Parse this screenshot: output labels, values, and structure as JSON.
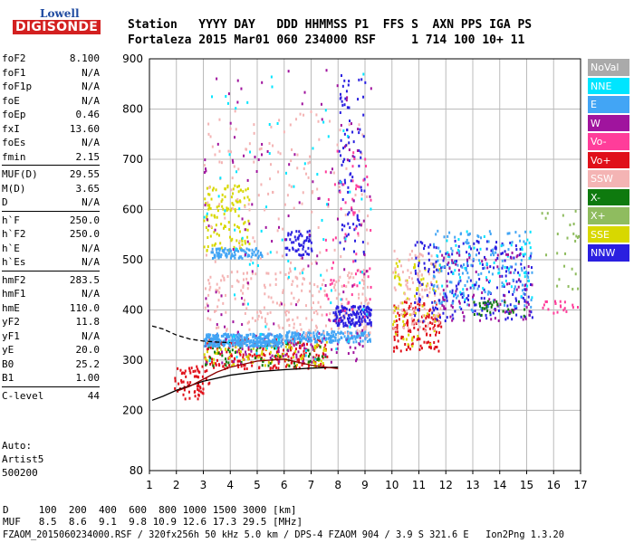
{
  "logo": {
    "line1": "Lowell",
    "line2": "DIGISONDE"
  },
  "header": {
    "labels": "Station   YYYY DAY   DDD HHMMSS P1  FFS S  AXN PPS IGA PS",
    "values": "Fortaleza 2015 Mar01 060 234000 RSF     1 714 100 10+ 11"
  },
  "params": {
    "group1": [
      {
        "name": "foF2",
        "value": "8.100"
      },
      {
        "name": "foF1",
        "value": "N/A"
      },
      {
        "name": "foF1p",
        "value": "N/A"
      },
      {
        "name": "foE",
        "value": "N/A"
      },
      {
        "name": "foEp",
        "value": "0.46"
      },
      {
        "name": "fxI",
        "value": "13.60"
      },
      {
        "name": "foEs",
        "value": "N/A"
      },
      {
        "name": "fmin",
        "value": "2.15"
      }
    ],
    "group2": [
      {
        "name": "MUF(D)",
        "value": "29.55"
      },
      {
        "name": "M(D)",
        "value": "3.65"
      },
      {
        "name": "D",
        "value": "N/A"
      }
    ],
    "group3": [
      {
        "name": "h`F",
        "value": "250.0"
      },
      {
        "name": "h`F2",
        "value": "250.0"
      },
      {
        "name": "h`E",
        "value": "N/A"
      },
      {
        "name": "h`Es",
        "value": "N/A"
      }
    ],
    "group4": [
      {
        "name": "hmF2",
        "value": "283.5"
      },
      {
        "name": "hmF1",
        "value": "N/A"
      },
      {
        "name": "hmE",
        "value": "110.0"
      },
      {
        "name": "yF2",
        "value": "11.8"
      },
      {
        "name": "yF1",
        "value": "N/A"
      },
      {
        "name": "yE",
        "value": "20.0"
      },
      {
        "name": "B0",
        "value": "25.2"
      },
      {
        "name": "B1",
        "value": "1.00"
      }
    ],
    "group5": [
      {
        "name": "C-level",
        "value": "44"
      }
    ]
  },
  "autoscale": [
    "Auto:",
    "Artist5",
    "500200"
  ],
  "legend": [
    {
      "label": "NoVal",
      "color": "#aaaaaa"
    },
    {
      "label": "NNE",
      "color": "#00e5ff"
    },
    {
      "label": "E",
      "color": "#42a5f5"
    },
    {
      "label": "W",
      "color": "#a0149e"
    },
    {
      "label": "Vo-",
      "color": "#ff3d9a"
    },
    {
      "label": "Vo+",
      "color": "#e0101a"
    },
    {
      "label": "SSW",
      "color": "#f4b4b4"
    },
    {
      "label": "X-",
      "color": "#0e7a0e"
    },
    {
      "label": "X+",
      "color": "#8fbc5f"
    },
    {
      "label": "SSE",
      "color": "#d8d800"
    },
    {
      "label": "NNW",
      "color": "#2a1fe0"
    }
  ],
  "bottom": {
    "d_line": "D     100  200  400  600  800 1000 1500 3000 [km]",
    "muf_line": "MUF   8.5  8.6  9.1  9.8 10.9 12.6 17.3 29.5 [MHz]",
    "file_line": "FZAOM_2015060234000.RSF / 320fx256h 50 kHz 5.0 km / DPS-4 FZAOM 904 / 3.9 S 321.6 E   Ion2Png 1.3.20"
  },
  "chart_data": {
    "type": "scatter",
    "title": "",
    "xlabel": "",
    "ylabel": "",
    "xlim": [
      1,
      17
    ],
    "ylim": [
      80,
      900
    ],
    "x_ticks": [
      1,
      2,
      3,
      4,
      5,
      6,
      7,
      8,
      9,
      10,
      11,
      12,
      13,
      14,
      15,
      16,
      17
    ],
    "y_ticks": [
      80,
      200,
      300,
      400,
      500,
      600,
      700,
      800,
      900
    ],
    "grid": true,
    "clusters": [
      {
        "name": "F trace O-mode",
        "color": "#e0101a",
        "x": [
          1.9,
          3.2
        ],
        "y": [
          225,
          290
        ],
        "n": 70
      },
      {
        "name": "F trace band",
        "color": "#e0101a",
        "x": [
          3.0,
          7.6
        ],
        "y": [
          285,
          345
        ],
        "n": 220
      },
      {
        "name": "F trace band",
        "color": "#d8d800",
        "x": [
          3.0,
          7.6
        ],
        "y": [
          290,
          340
        ],
        "n": 90
      },
      {
        "name": "F trace band",
        "color": "#0e7a0e",
        "x": [
          3.0,
          7.6
        ],
        "y": [
          290,
          340
        ],
        "n": 60
      },
      {
        "name": "F trace band",
        "color": "#a0149e",
        "x": [
          3.0,
          9.0
        ],
        "y": [
          295,
          360
        ],
        "n": 70
      },
      {
        "name": "F2 echo band",
        "color": "#42a5f5",
        "x": [
          3.0,
          5.9
        ],
        "y": [
          330,
          355
        ],
        "n": 320
      },
      {
        "name": "F2 echo band",
        "color": "#42a5f5",
        "x": [
          6.0,
          9.2
        ],
        "y": [
          338,
          360
        ],
        "n": 200
      },
      {
        "name": "echo column",
        "color": "#d8d800",
        "x": [
          3.0,
          4.7
        ],
        "y": [
          520,
          650
        ],
        "n": 120
      },
      {
        "name": "echo column",
        "color": "#f4b4b4",
        "x": [
          3.0,
          9.2
        ],
        "y": [
          350,
          480
        ],
        "n": 240
      },
      {
        "name": "echo column",
        "color": "#f4b4b4",
        "x": [
          3.0,
          9.2
        ],
        "y": [
          480,
          800
        ],
        "n": 140
      },
      {
        "name": "echo column",
        "color": "#42a5f5",
        "x": [
          3.2,
          5.2
        ],
        "y": [
          505,
          525
        ],
        "n": 90
      },
      {
        "name": "echo column",
        "color": "#2a1fe0",
        "x": [
          7.8,
          9.2
        ],
        "y": [
          370,
          410
        ],
        "n": 150
      },
      {
        "name": "echo column",
        "color": "#2a1fe0",
        "x": [
          6.0,
          7.0
        ],
        "y": [
          510,
          560
        ],
        "n": 60
      },
      {
        "name": "echo column",
        "color": "#2a1fe0",
        "x": [
          8.0,
          9.0
        ],
        "y": [
          500,
          880
        ],
        "n": 90
      },
      {
        "name": "echo column",
        "color": "#ff3d9a",
        "x": [
          7.5,
          9.2
        ],
        "y": [
          380,
          720
        ],
        "n": 70
      },
      {
        "name": "scatter",
        "color": "#a0149e",
        "x": [
          3.0,
          9.2
        ],
        "y": [
          300,
          880
        ],
        "n": 120
      },
      {
        "name": "scatter",
        "color": "#00e5ff",
        "x": [
          3.0,
          9.2
        ],
        "y": [
          300,
          880
        ],
        "n": 80
      },
      {
        "name": "scatter",
        "color": "#e0101a",
        "x": [
          10.0,
          11.8
        ],
        "y": [
          320,
          420
        ],
        "n": 140
      },
      {
        "name": "scatter",
        "color": "#d8d800",
        "x": [
          10.0,
          11.8
        ],
        "y": [
          330,
          500
        ],
        "n": 70
      },
      {
        "name": "scatter",
        "color": "#f4b4b4",
        "x": [
          10.0,
          11.8
        ],
        "y": [
          360,
          520
        ],
        "n": 110
      },
      {
        "name": "scatter",
        "color": "#2a1fe0",
        "x": [
          10.8,
          15.2
        ],
        "y": [
          380,
          540
        ],
        "n": 230
      },
      {
        "name": "scatter",
        "color": "#42a5f5",
        "x": [
          11.5,
          15.2
        ],
        "y": [
          400,
          560
        ],
        "n": 150
      },
      {
        "name": "scatter",
        "color": "#00e5ff",
        "x": [
          11.5,
          15.2
        ],
        "y": [
          420,
          560
        ],
        "n": 60
      },
      {
        "name": "scatter",
        "color": "#a0149e",
        "x": [
          11.8,
          15.2
        ],
        "y": [
          380,
          520
        ],
        "n": 90
      },
      {
        "name": "scatter",
        "color": "#0e7a0e",
        "x": [
          13.0,
          15.0
        ],
        "y": [
          390,
          420
        ],
        "n": 30
      },
      {
        "name": "scatter",
        "color": "#8fbc5f",
        "x": [
          15.5,
          17.0
        ],
        "y": [
          440,
          600
        ],
        "n": 25
      },
      {
        "name": "scatter",
        "color": "#ff3d9a",
        "x": [
          15.5,
          17.0
        ],
        "y": [
          395,
          420
        ],
        "n": 20
      }
    ],
    "model_curves": [
      {
        "name": "MUF lower curve",
        "color": "#000000",
        "dash": false,
        "x": [
          1.1,
          1.5,
          2,
          3,
          4,
          5,
          6,
          7,
          8
        ],
        "y": [
          220,
          228,
          240,
          258,
          270,
          277,
          281,
          284,
          286
        ]
      },
      {
        "name": "MUF upper curve",
        "color": "#000000",
        "dash": true,
        "x": [
          1.1,
          1.5,
          2,
          2.5,
          3,
          3.5,
          4
        ],
        "y": [
          368,
          362,
          350,
          342,
          338,
          336,
          335
        ]
      },
      {
        "name": "true height profile",
        "color": "#8b0000",
        "dash": false,
        "x": [
          2,
          2.5,
          3,
          3.5,
          4,
          5,
          6,
          7,
          8
        ],
        "y": [
          238,
          248,
          262,
          276,
          286,
          298,
          302,
          290,
          283
        ]
      }
    ]
  }
}
